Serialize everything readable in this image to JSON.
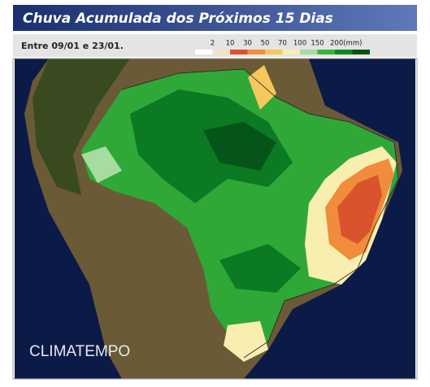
{
  "title": "Chuva Acumulada dos Próximos 15 Dias",
  "subtitle": "Entre 09/01 e 23/01.",
  "legend": {
    "labels": [
      "2",
      "10",
      "30",
      "50",
      "70",
      "100",
      "150",
      "200(mm)"
    ],
    "colors": [
      "#ffffff",
      "#f6e2c6",
      "#d9542c",
      "#f08c3c",
      "#f6c85c",
      "#f8eeb0",
      "#a6dca0",
      "#38b43a",
      "#0a8a20",
      "#045414"
    ]
  },
  "watermark": "CLIMATEMPO"
}
